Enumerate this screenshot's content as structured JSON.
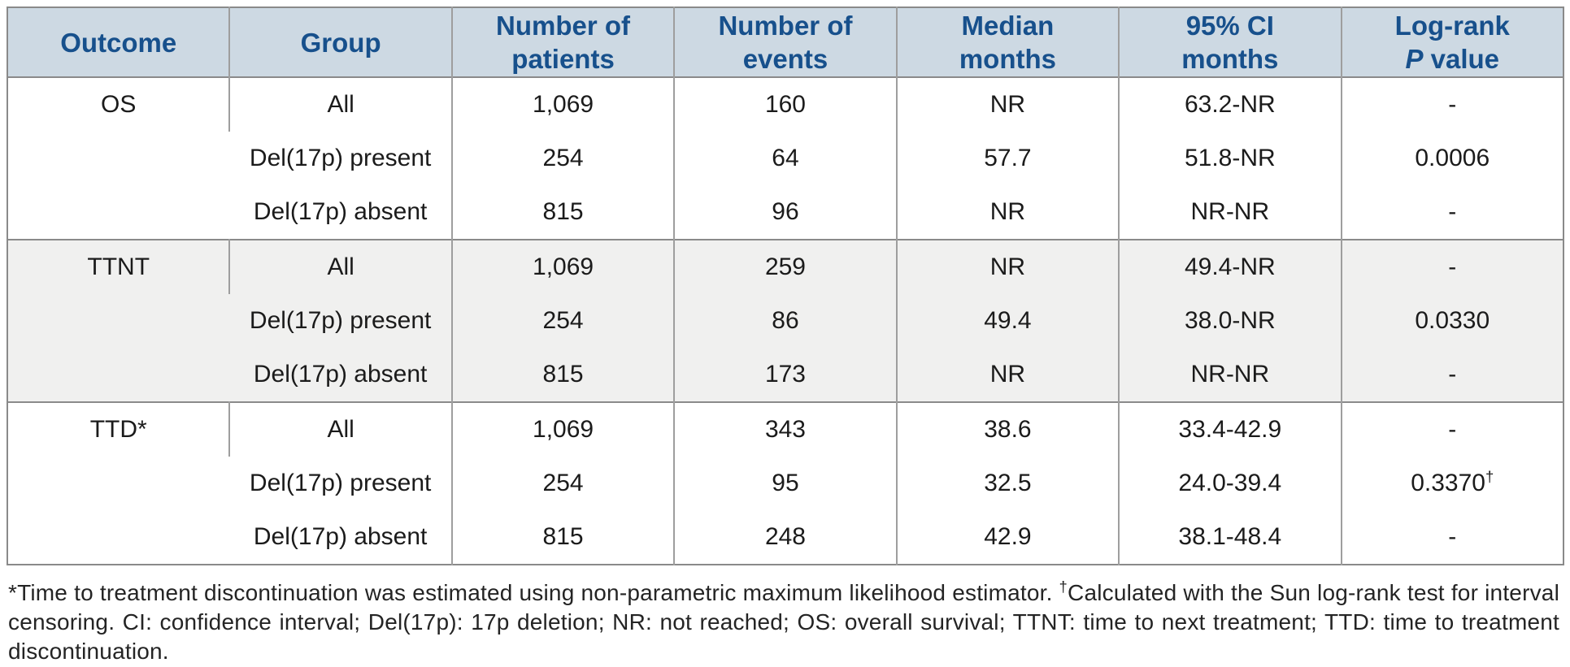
{
  "colors": {
    "header_bg": "#cdd9e3",
    "header_text": "#17508c",
    "section_alt_bg": "#f0f0ef",
    "border_heavy": "#8a8a8a",
    "border_light": "#9e9e9e",
    "body_text": "#1b1b1b"
  },
  "table": {
    "headers": {
      "outcome": "Outcome",
      "group": "Group",
      "patients_l1": "Number of",
      "patients_l2": "patients",
      "events_l1": "Number of",
      "events_l2": "events",
      "median_l1": "Median",
      "median_l2": "months",
      "ci_l1": "95% CI",
      "ci_l2": "months",
      "logrank_l1": "Log-rank",
      "logrank_l2_italic": "P",
      "logrank_l2_rest": " value"
    },
    "sections": [
      {
        "outcome": "OS",
        "rows": [
          {
            "group": "All",
            "patients": "1,069",
            "events": "160",
            "median": "NR",
            "ci": "63.2-NR",
            "p": "-",
            "p_sup": ""
          },
          {
            "group": "Del(17p) present",
            "patients": "254",
            "events": "64",
            "median": "57.7",
            "ci": "51.8-NR",
            "p": "0.0006",
            "p_sup": ""
          },
          {
            "group": "Del(17p) absent",
            "patients": "815",
            "events": "96",
            "median": "NR",
            "ci": "NR-NR",
            "p": "-",
            "p_sup": ""
          }
        ]
      },
      {
        "outcome": "TTNT",
        "rows": [
          {
            "group": "All",
            "patients": "1,069",
            "events": "259",
            "median": "NR",
            "ci": "49.4-NR",
            "p": "-",
            "p_sup": ""
          },
          {
            "group": "Del(17p) present",
            "patients": "254",
            "events": "86",
            "median": "49.4",
            "ci": "38.0-NR",
            "p": "0.0330",
            "p_sup": ""
          },
          {
            "group": "Del(17p) absent",
            "patients": "815",
            "events": "173",
            "median": "NR",
            "ci": "NR-NR",
            "p": "-",
            "p_sup": ""
          }
        ]
      },
      {
        "outcome": "TTD*",
        "rows": [
          {
            "group": "All",
            "patients": "1,069",
            "events": "343",
            "median": "38.6",
            "ci": "33.4-42.9",
            "p": "-",
            "p_sup": ""
          },
          {
            "group": "Del(17p) present",
            "patients": "254",
            "events": "95",
            "median": "32.5",
            "ci": "24.0-39.4",
            "p": "0.3370",
            "p_sup": "†"
          },
          {
            "group": "Del(17p) absent",
            "patients": "815",
            "events": "248",
            "median": "42.9",
            "ci": "38.1-48.4",
            "p": "-",
            "p_sup": ""
          }
        ]
      }
    ]
  },
  "footnote": {
    "before_dagger": "*Time to treatment discontinuation was estimated using non-parametric maximum likelihood estimator. ",
    "dagger": "†",
    "after_dagger": "Calculated with the Sun log-rank test for interval censoring. CI: confidence interval; Del(17p): 17p deletion; NR: not reached; OS: overall survival; TTNT: time to next treatment; TTD: time to treatment discontinuation."
  }
}
